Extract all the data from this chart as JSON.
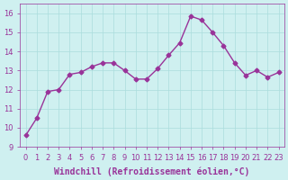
{
  "x": [
    0,
    1,
    2,
    3,
    4,
    5,
    6,
    7,
    8,
    9,
    10,
    11,
    12,
    13,
    14,
    15,
    16,
    17,
    18,
    19,
    20,
    21,
    22,
    23
  ],
  "y": [
    9.6,
    10.5,
    11.9,
    12.0,
    12.8,
    12.9,
    13.2,
    13.4,
    13.4,
    13.0,
    12.55,
    12.55,
    13.1,
    13.8,
    14.45,
    15.85,
    15.65,
    15.0,
    14.3,
    13.4,
    12.75,
    13.0,
    12.65,
    12.9
  ],
  "line_color": "#993399",
  "marker": "D",
  "marker_size": 2.5,
  "bg_color": "#cff0f0",
  "grid_color": "#aadddd",
  "xlabel": "Windchill (Refroidissement éolien,°C)",
  "xlim": [
    -0.5,
    23.5
  ],
  "ylim": [
    9.0,
    16.5
  ],
  "yticks": [
    9,
    10,
    11,
    12,
    13,
    14,
    15,
    16
  ],
  "xtick_labels": [
    "0",
    "1",
    "2",
    "3",
    "4",
    "5",
    "6",
    "7",
    "8",
    "9",
    "10",
    "11",
    "12",
    "13",
    "14",
    "15",
    "16",
    "17",
    "18",
    "19",
    "20",
    "21",
    "22",
    "23"
  ],
  "tick_fontsize": 6,
  "xlabel_fontsize": 7,
  "line_width": 1.0
}
